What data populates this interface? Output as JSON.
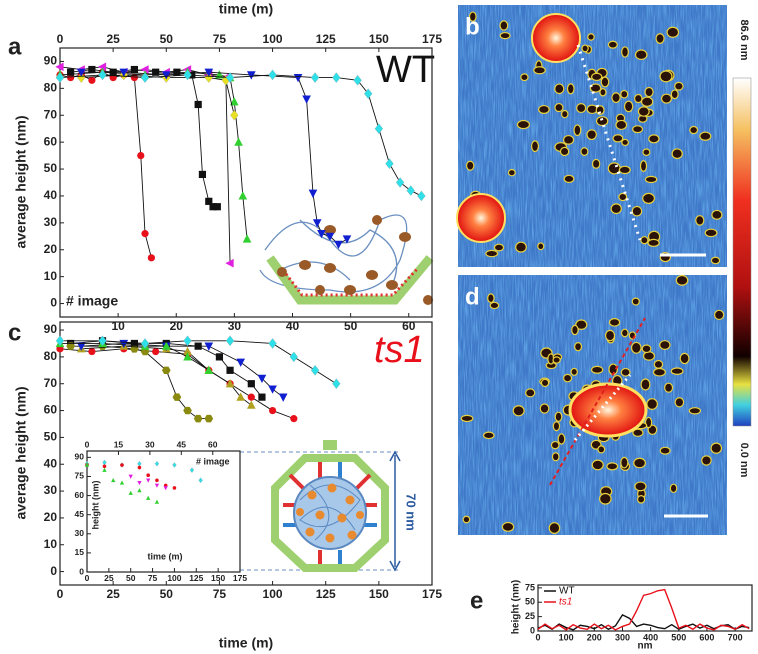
{
  "panel_labels": {
    "a": "a",
    "b": "b",
    "c": "c",
    "d": "d",
    "e": "e"
  },
  "annotations": {
    "wt": "WT",
    "ts1": "ts1",
    "size": "70 nm"
  },
  "colorbar": {
    "max_label": "86.6 nm",
    "min_label": "0.0 nm"
  },
  "chart_data": [
    {
      "type": "scatter",
      "fit": true,
      "xaxis_side": "top",
      "xlabel": "time (m)",
      "x2label": "# image",
      "ylabel": "average height (nm)",
      "xlim": [
        0,
        175
      ],
      "xticks": [
        0,
        25,
        50,
        75,
        100,
        125,
        150,
        175
      ],
      "x2lim": [
        0,
        64
      ],
      "x2ticks": [
        10,
        20,
        30,
        40,
        50,
        60
      ],
      "ylim": [
        -5,
        95
      ],
      "yticks": [
        0,
        10,
        20,
        30,
        40,
        50,
        60,
        70,
        80,
        90
      ],
      "series": [
        {
          "color": "#e8101a",
          "marker": "circle",
          "x": [
            0,
            5,
            10,
            15,
            20,
            25,
            30,
            35,
            38,
            40,
            43
          ],
          "values": [
            85,
            84,
            85,
            83,
            86,
            84,
            85,
            84,
            55,
            26,
            17
          ]
        },
        {
          "color": "#111111",
          "marker": "square",
          "x": [
            5,
            15,
            25,
            35,
            45,
            55,
            62,
            65,
            67,
            70,
            72,
            74
          ],
          "values": [
            86,
            87,
            86,
            87,
            86,
            86,
            85,
            74,
            48,
            38,
            36,
            36
          ]
        },
        {
          "color": "#e020e0",
          "marker": "triangle-left",
          "x": [
            0,
            10,
            20,
            30,
            40,
            50,
            60,
            70,
            78,
            80
          ],
          "values": [
            88,
            87,
            88,
            86,
            87,
            86,
            87,
            85,
            84,
            15
          ]
        },
        {
          "color": "#30d030",
          "marker": "triangle-up",
          "x": [
            0,
            20,
            40,
            60,
            75,
            80,
            82,
            84,
            86,
            88
          ],
          "values": [
            85,
            86,
            85,
            86,
            85,
            84,
            75,
            60,
            40,
            24
          ]
        },
        {
          "color": "#e8e020",
          "marker": "diamond",
          "x": [
            10,
            30,
            50,
            70,
            78,
            82
          ],
          "values": [
            84,
            85,
            84,
            84,
            83,
            70
          ]
        },
        {
          "color": "#1020d0",
          "marker": "triangle-down",
          "x": [
            10,
            30,
            50,
            70,
            90,
            112,
            116,
            119,
            121,
            123,
            127,
            131,
            135
          ],
          "values": [
            86,
            86,
            85,
            86,
            85,
            84,
            76,
            41,
            30,
            26,
            25,
            22,
            24
          ]
        },
        {
          "color": "#30e0e8",
          "marker": "diamond",
          "x": [
            0,
            20,
            40,
            60,
            80,
            100,
            120,
            130,
            140,
            145,
            150,
            155,
            160,
            165,
            170
          ],
          "values": [
            84,
            85,
            84,
            85,
            84,
            85,
            84,
            84,
            83,
            78,
            65,
            52,
            45,
            42,
            40
          ]
        }
      ]
    },
    {
      "type": "scatter",
      "fit": true,
      "xlabel": "time (m)",
      "ylabel": "average height (nm)",
      "xlim": [
        0,
        175
      ],
      "xticks": [
        0,
        25,
        50,
        75,
        100,
        125,
        150,
        175
      ],
      "ylim": [
        -5,
        93
      ],
      "yticks": [
        0,
        10,
        20,
        30,
        40,
        50,
        60,
        70,
        80,
        90
      ],
      "series": [
        {
          "color": "#e8101a",
          "marker": "circle",
          "x": [
            0,
            15,
            30,
            45,
            60,
            70,
            80,
            90,
            100,
            110
          ],
          "values": [
            83,
            82,
            83,
            82,
            81,
            75,
            70,
            65,
            60,
            57
          ]
        },
        {
          "color": "#111111",
          "marker": "square",
          "x": [
            5,
            20,
            35,
            50,
            65,
            75,
            80,
            90,
            95
          ],
          "values": [
            85,
            86,
            85,
            85,
            84,
            80,
            75,
            70,
            65
          ]
        },
        {
          "color": "#8a8a10",
          "marker": "hexagon",
          "x": [
            5,
            20,
            35,
            40,
            50,
            55,
            60,
            65,
            70
          ],
          "values": [
            84,
            84,
            83,
            82,
            75,
            65,
            60,
            57,
            57
          ]
        },
        {
          "color": "#b0a020",
          "marker": "triangle-up",
          "x": [
            10,
            30,
            50,
            60,
            70,
            80,
            85,
            90
          ],
          "values": [
            83,
            84,
            83,
            82,
            75,
            70,
            65,
            62
          ]
        },
        {
          "color": "#1020d0",
          "marker": "triangle-down",
          "x": [
            10,
            30,
            50,
            70,
            85,
            95,
            100,
            105
          ],
          "values": [
            84,
            85,
            84,
            84,
            78,
            72,
            68,
            65
          ]
        },
        {
          "color": "#30d030",
          "marker": "triangle-up",
          "x": [
            0,
            20,
            40,
            50,
            60,
            70
          ],
          "values": [
            85,
            85,
            84,
            84,
            80,
            75
          ]
        },
        {
          "color": "#30e0e8",
          "marker": "diamond",
          "x": [
            0,
            20,
            40,
            60,
            80,
            100,
            110,
            120,
            130
          ],
          "values": [
            86,
            86,
            85,
            86,
            86,
            85,
            80,
            75,
            70
          ]
        }
      ]
    },
    {
      "type": "scatter",
      "fit": false,
      "xlabel": "time (m)",
      "x2label": "# image",
      "ylabel": "height (nm)",
      "xlim": [
        0,
        175
      ],
      "xticks": [
        0,
        25,
        50,
        75,
        100,
        125,
        150,
        175
      ],
      "x2lim": [
        0,
        73
      ],
      "x2ticks": [
        0,
        15,
        30,
        45,
        60
      ],
      "ylim": [
        0,
        95
      ],
      "yticks": [
        0,
        15,
        30,
        45,
        60,
        75,
        90
      ],
      "series": [
        {
          "color": "#30e0e8",
          "marker": "diamond",
          "x": [
            0,
            20,
            40,
            60,
            80,
            100,
            120,
            130
          ],
          "values": [
            85,
            86,
            84,
            85,
            85,
            84,
            80,
            72
          ]
        },
        {
          "color": "#e8101a",
          "marker": "circle",
          "x": [
            0,
            20,
            40,
            60,
            70,
            80,
            90,
            100
          ],
          "values": [
            84,
            83,
            84,
            82,
            76,
            72,
            68,
            66
          ]
        },
        {
          "color": "#30d030",
          "marker": "triangle-up",
          "x": [
            0,
            20,
            30,
            40,
            50,
            60,
            70,
            80
          ],
          "values": [
            84,
            80,
            72,
            70,
            62,
            64,
            58,
            55
          ]
        },
        {
          "color": "#e020e0",
          "marker": "triangle-down",
          "x": [
            50,
            60,
            70,
            80,
            90
          ],
          "values": [
            75,
            70,
            72,
            68,
            66
          ]
        }
      ]
    },
    {
      "type": "line",
      "legend": "top-left",
      "xlabel": "nm",
      "ylabel": "height (nm)",
      "x": [
        0,
        25,
        50,
        75,
        100,
        125,
        150,
        175,
        200,
        225,
        250,
        275,
        300,
        325,
        350,
        375,
        400,
        425,
        450,
        475,
        500,
        525,
        550,
        575,
        600,
        625,
        650,
        675,
        700,
        725,
        750
      ],
      "xlim": [
        0,
        760
      ],
      "xticks": [
        0,
        100,
        200,
        300,
        400,
        500,
        600,
        700
      ],
      "ylim": [
        0,
        80
      ],
      "yticks": [
        0,
        25,
        50,
        75
      ],
      "series": [
        {
          "name": "WT",
          "color": "#111111",
          "values": [
            5,
            10,
            3,
            12,
            6,
            2,
            10,
            8,
            4,
            11,
            3,
            9,
            28,
            22,
            8,
            12,
            10,
            6,
            4,
            11,
            3,
            8,
            12,
            5,
            10,
            4,
            9,
            11,
            3,
            8,
            6
          ]
        },
        {
          "name": "ts1",
          "color": "#e8101a",
          "values": [
            3,
            12,
            4,
            10,
            2,
            11,
            5,
            3,
            12,
            4,
            10,
            2,
            8,
            12,
            35,
            62,
            65,
            70,
            72,
            40,
            5,
            10,
            3,
            12,
            5,
            2,
            10,
            8,
            3,
            11,
            4
          ]
        }
      ]
    }
  ]
}
